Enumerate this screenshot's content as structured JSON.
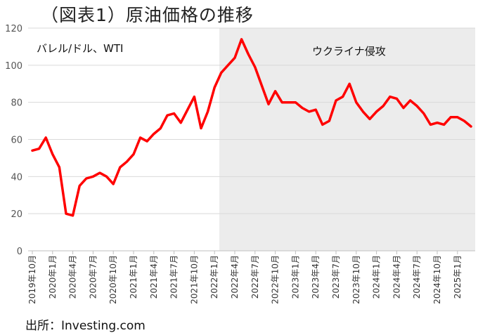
{
  "chart_data": {
    "type": "line",
    "title": "（図表1）原油価格の推移",
    "unit_label": "バレル/ドル、WTI",
    "shaded_label": "ウクライナ侵攻",
    "source": "出所：Investing.com",
    "ylim": [
      0,
      120
    ],
    "yticks": [
      0,
      20,
      40,
      60,
      80,
      100,
      120
    ],
    "xticks": [
      "2019年10月",
      "2020年1月",
      "2020年4月",
      "2020年7月",
      "2020年10月",
      "2021年1月",
      "2021年4月",
      "2021年7月",
      "2021年10月",
      "2022年1月",
      "2022年4月",
      "2022年7月",
      "2022年10月",
      "2023年1月",
      "2023年4月",
      "2023年7月",
      "2023年10月",
      "2024年1月",
      "2024年4月",
      "2024年7月",
      "2024年10月",
      "2025年1月"
    ],
    "grid": true,
    "shaded_region": {
      "from": "2022年2月",
      "to": "2025年3月"
    },
    "series": [
      {
        "color": "#ff0000",
        "x": [
          "2019年10月",
          "2019年11月",
          "2019年12月",
          "2020年1月",
          "2020年2月",
          "2020年3月",
          "2020年4月",
          "2020年5月",
          "2020年6月",
          "2020年7月",
          "2020年8月",
          "2020年9月",
          "2020年10月",
          "2020年11月",
          "2020年12月",
          "2021年1月",
          "2021年2月",
          "2021年3月",
          "2021年4月",
          "2021年5月",
          "2021年6月",
          "2021年7月",
          "2021年8月",
          "2021年9月",
          "2021年10月",
          "2021年11月",
          "2021年12月",
          "2022年1月",
          "2022年2月",
          "2022年3月",
          "2022年4月",
          "2022年5月",
          "2022年6月",
          "2022年7月",
          "2022年8月",
          "2022年9月",
          "2022年10月",
          "2022年11月",
          "2022年12月",
          "2023年1月",
          "2023年2月",
          "2023年3月",
          "2023年4月",
          "2023年5月",
          "2023年6月",
          "2023年7月",
          "2023年8月",
          "2023年9月",
          "2023年10月",
          "2023年11月",
          "2023年12月",
          "2024年1月",
          "2024年2月",
          "2024年3月",
          "2024年4月",
          "2024年5月",
          "2024年6月",
          "2024年7月",
          "2024年8月",
          "2024年9月",
          "2024年10月",
          "2024年11月",
          "2024年12月",
          "2025年1月",
          "2025年2月",
          "2025年3月"
        ],
        "values": [
          54,
          55,
          61,
          52,
          45,
          20,
          19,
          35,
          39,
          40,
          42,
          40,
          36,
          45,
          48,
          52,
          61,
          59,
          63,
          66,
          73,
          74,
          69,
          76,
          83,
          66,
          75,
          88,
          96,
          100,
          104,
          114,
          106,
          99,
          89,
          79,
          86,
          80,
          80,
          80,
          77,
          75,
          76,
          68,
          70,
          81,
          83,
          90,
          80,
          75,
          71,
          75,
          78,
          83,
          82,
          77,
          81,
          78,
          74,
          68,
          69,
          68,
          72,
          72,
          70,
          67
        ]
      }
    ]
  }
}
